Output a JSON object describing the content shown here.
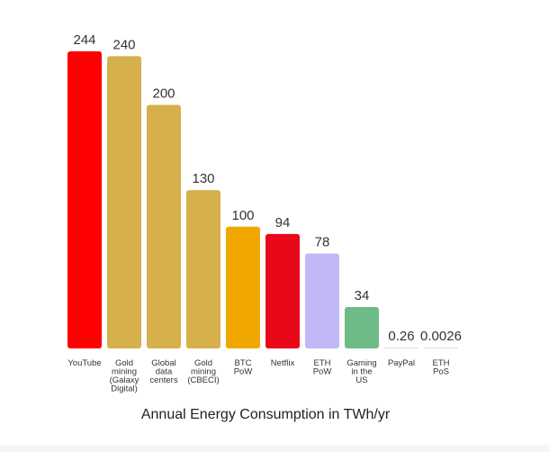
{
  "chart_data": {
    "type": "bar",
    "title": "Annual Energy Consumption in TWh/yr",
    "xlabel": "",
    "ylabel": "",
    "ylim": [
      0,
      244
    ],
    "grid": false,
    "categories": [
      "YouTube",
      "Gold mining (Galaxy Digital)",
      "Global data centers",
      "Gold mining (CBECI)",
      "BTC PoW",
      "Netflix",
      "ETH PoW",
      "Gaming in the US",
      "PayPal",
      "ETH PoS"
    ],
    "category_lines": [
      [
        "YouTube"
      ],
      [
        "Gold",
        "mining",
        "(Galaxy",
        "Digital)"
      ],
      [
        "Global",
        "data",
        "centers"
      ],
      [
        "Gold",
        "mining",
        "(CBECI)"
      ],
      [
        "BTC",
        "PoW"
      ],
      [
        "Netflix"
      ],
      [
        "ETH",
        "PoW"
      ],
      [
        "Gaming",
        "in the",
        "US"
      ],
      [
        "PayPal"
      ],
      [
        "ETH",
        "PoS"
      ]
    ],
    "values": [
      244,
      240,
      200,
      130,
      100,
      94,
      78,
      34,
      0.26,
      0.0026
    ],
    "value_labels": [
      "244",
      "240",
      "200",
      "130",
      "100",
      "94",
      "78",
      "34",
      "0.26",
      "0.0026"
    ],
    "colors": [
      "#ff0000",
      "#d6b04a",
      "#d6b04a",
      "#d6b04a",
      "#f0a800",
      "#e8081a",
      "#c2b8f5",
      "#6fbb88",
      "#dddddd",
      "#dddddd"
    ]
  }
}
